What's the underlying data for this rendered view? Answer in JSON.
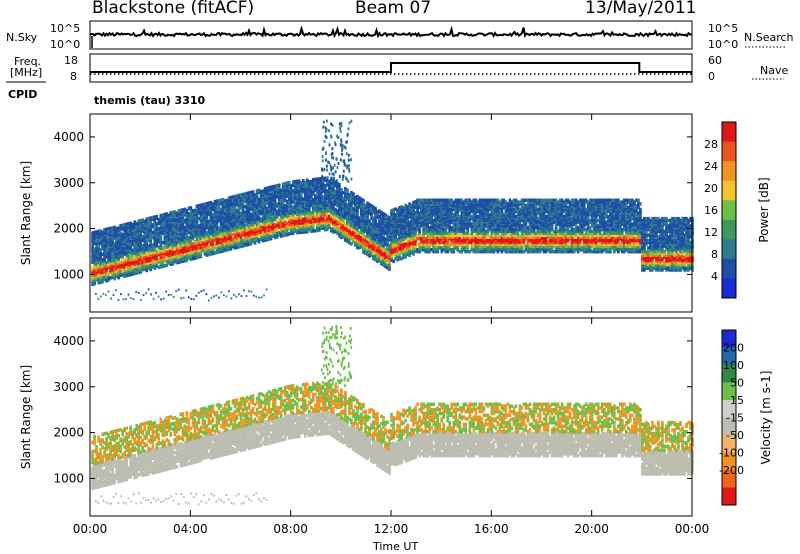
{
  "header": {
    "station": "Blackstone (fitACF)",
    "beam": "Beam 07",
    "date": "13/May/2011"
  },
  "noise_panel": {
    "left_label": "N.Sky",
    "right_label": "N.Search",
    "left_ticks": [
      "10^5",
      "10^0"
    ],
    "right_ticks": [
      "10^5",
      "10^0"
    ]
  },
  "freq_panel": {
    "left_label_1": "Freq.",
    "left_label_2": "[MHz]",
    "right_label": "Nave",
    "left_ticks": [
      "18",
      "8"
    ],
    "right_ticks": [
      "60",
      "0"
    ],
    "cpid_label": "CPID",
    "cpid_value": "themis (tau) 3310"
  },
  "colors": {
    "power_scale": [
      "#1a2bd6",
      "#1d4fa6",
      "#2e7d8c",
      "#3d9a5a",
      "#6cc04a",
      "#f0c430",
      "#f39322",
      "#e8531e",
      "#e01717"
    ],
    "velocity_scale": [
      "#e01717",
      "#f2641e",
      "#f39322",
      "#f2b36a",
      "#bdbdb1",
      "#cfcfc6",
      "#6cc04a",
      "#2f8a43",
      "#1d6aa8",
      "#1a2bd6"
    ],
    "ground_scatter": "#bdbdb1"
  },
  "chart_data": [
    {
      "type": "heatmap",
      "name": "power-panel",
      "ylabel": "Slant Range [km]",
      "y_ticks": [
        "4000",
        "3000",
        "2000",
        "1000"
      ],
      "y_tick_values": [
        4000,
        3000,
        2000,
        1000
      ],
      "ylim": [
        180,
        4500
      ],
      "x_ticks": [
        "00:00",
        "04:00",
        "08:00",
        "12:00",
        "16:00",
        "20:00",
        "00:00"
      ],
      "x_tick_values": [
        0,
        4,
        8,
        12,
        16,
        20,
        24
      ],
      "xlim": [
        0,
        24
      ],
      "colorbar": {
        "label": "Power [dB]",
        "tick_labels": [
          "28",
          "24",
          "20",
          "16",
          "12",
          "8",
          "4"
        ],
        "tick_values": [
          28,
          24,
          20,
          16,
          12,
          8,
          4
        ],
        "range": [
          0,
          32
        ]
      }
    },
    {
      "type": "heatmap",
      "name": "velocity-panel",
      "ylabel": "Slant Range [km]",
      "y_ticks": [
        "4000",
        "3000",
        "2000",
        "1000"
      ],
      "y_tick_values": [
        4000,
        3000,
        2000,
        1000
      ],
      "ylim": [
        180,
        4500
      ],
      "xlabel": "Time UT",
      "x_ticks": [
        "00:00",
        "04:00",
        "08:00",
        "12:00",
        "16:00",
        "20:00",
        "00:00"
      ],
      "x_tick_values": [
        0,
        4,
        8,
        12,
        16,
        20,
        24
      ],
      "xlim": [
        0,
        24
      ],
      "colorbar": {
        "label": "Velocity [m s-1]",
        "tick_labels": [
          "200",
          "100",
          "50",
          "15",
          "-15",
          "-50",
          "-100",
          "-200"
        ],
        "tick_values": [
          200,
          100,
          50,
          15,
          -15,
          -50,
          -100,
          -200
        ]
      }
    }
  ]
}
